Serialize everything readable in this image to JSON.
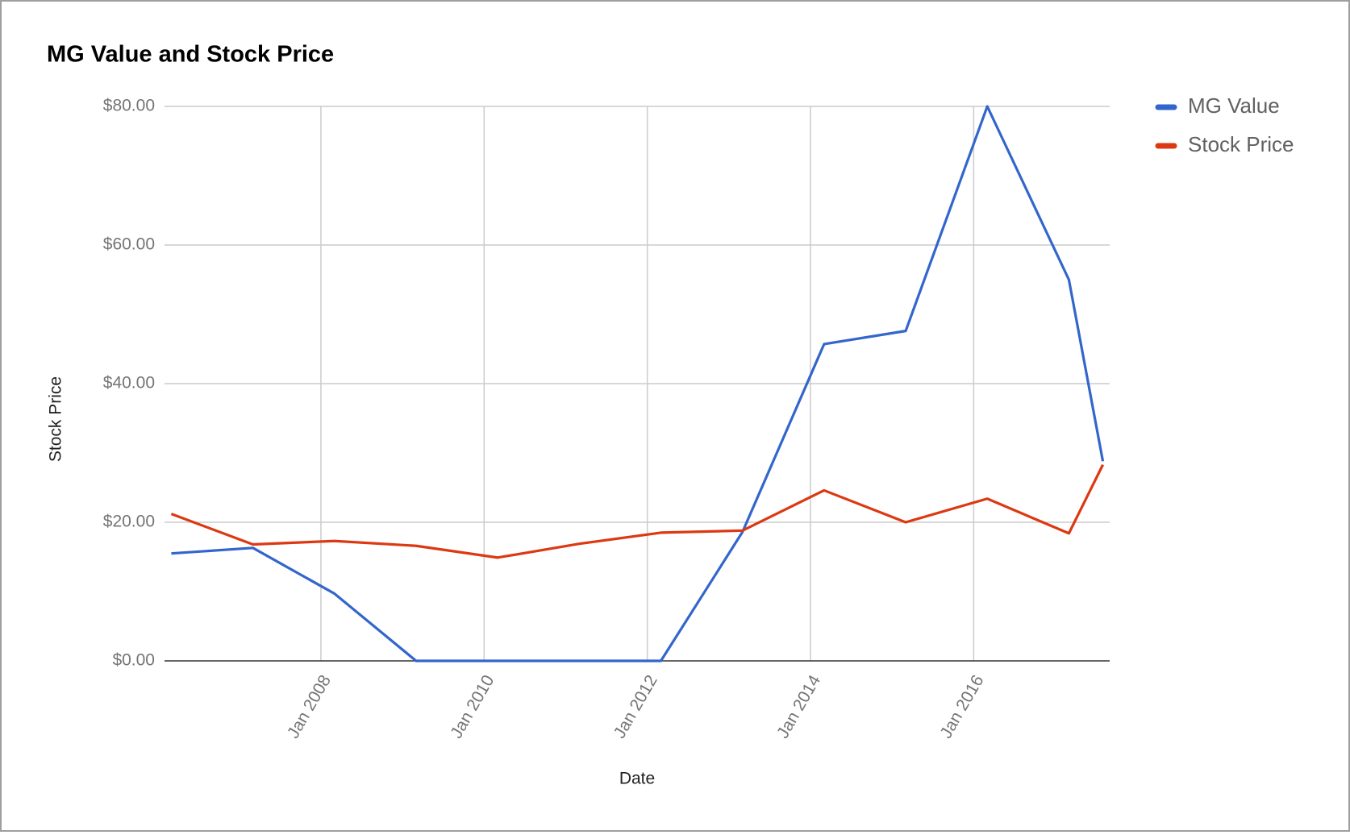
{
  "chart_data": {
    "type": "line",
    "title": "MG Value and Stock Price",
    "x_label": "Date",
    "y_label": "Stock Price",
    "x": [
      "2006-03",
      "2007-03",
      "2008-03",
      "2009-03",
      "2010-03",
      "2011-03",
      "2012-03",
      "2013-03",
      "2014-03",
      "2015-03",
      "2016-03",
      "2017-03",
      "2017-08"
    ],
    "series": [
      {
        "name": "MG Value",
        "color": "#3366cc",
        "values": [
          15.5,
          16.3,
          9.7,
          0,
          0,
          0,
          0,
          18.6,
          45.7,
          47.6,
          80,
          55,
          28.8
        ]
      },
      {
        "name": "Stock Price",
        "color": "#dc3912",
        "values": [
          21.2,
          16.8,
          17.3,
          16.6,
          14.9,
          16.9,
          18.5,
          18.8,
          24.6,
          20.0,
          23.4,
          18.4,
          28.3
        ]
      }
    ],
    "xlim": [
      "2006-02",
      "2017-09"
    ],
    "xticks": [
      {
        "value": "2008-01",
        "label": "Jan 2008"
      },
      {
        "value": "2010-01",
        "label": "Jan 2010"
      },
      {
        "value": "2012-01",
        "label": "Jan 2012"
      },
      {
        "value": "2014-01",
        "label": "Jan 2014"
      },
      {
        "value": "2016-01",
        "label": "Jan 2016"
      }
    ],
    "ylim": [
      0,
      80
    ],
    "yticks": [
      {
        "value": 0,
        "label": "$0.00"
      },
      {
        "value": 20,
        "label": "$20.00"
      },
      {
        "value": 40,
        "label": "$40.00"
      },
      {
        "value": 60,
        "label": "$60.00"
      },
      {
        "value": 80,
        "label": "$80.00"
      }
    ],
    "grid": true,
    "legend": "right"
  }
}
